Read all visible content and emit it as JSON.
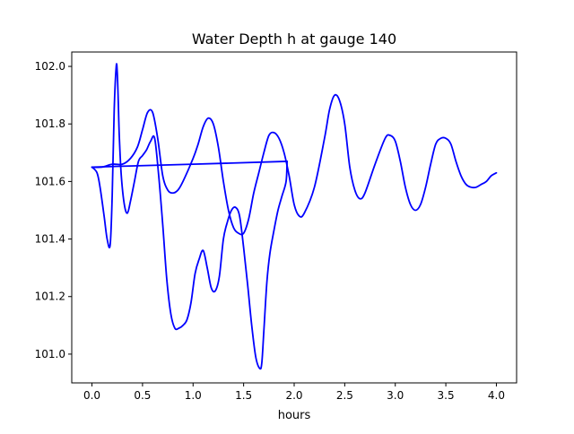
{
  "chart_data": {
    "type": "line",
    "title": "Water Depth h at gauge 140",
    "xlabel": "hours",
    "ylabel": "",
    "xlim": [
      -0.2,
      4.2
    ],
    "ylim": [
      100.9,
      102.05
    ],
    "xticks": [
      0.0,
      0.5,
      1.0,
      1.5,
      2.0,
      2.5,
      3.0,
      3.5,
      4.0
    ],
    "xtick_labels": [
      "0.0",
      "0.5",
      "1.0",
      "1.5",
      "2.0",
      "2.5",
      "3.0",
      "3.5",
      "4.0"
    ],
    "yticks": [
      101.0,
      101.2,
      101.4,
      101.6,
      101.8,
      102.0
    ],
    "ytick_labels": [
      "101.0",
      "101.2",
      "101.4",
      "101.6",
      "101.8",
      "102.0"
    ],
    "grid": false,
    "legend": "none",
    "series": [
      {
        "color": "#0000ff",
        "segments": [
          {
            "x": [
              0.0,
              0.05,
              0.08,
              0.12,
              0.15,
              0.18,
              0.2,
              0.22,
              0.24,
              0.25,
              0.26,
              0.27,
              0.29,
              0.32,
              0.35,
              0.38,
              0.42,
              0.46,
              0.5,
              0.54,
              0.58,
              0.62,
              0.66,
              0.7,
              0.74,
              0.78,
              0.82,
              0.86,
              0.9,
              0.94,
              0.98,
              1.02,
              1.06,
              1.1,
              1.14,
              1.18,
              1.22,
              1.26,
              1.3,
              1.34,
              1.38,
              1.42,
              1.46,
              1.5,
              1.54,
              1.58,
              1.62,
              1.66,
              1.68,
              1.7,
              1.73,
              1.76,
              1.8,
              1.84,
              1.88,
              1.92,
              1.93
            ],
            "y": [
              101.65,
              101.63,
              101.58,
              101.48,
              101.4,
              101.38,
              101.55,
              101.85,
              102.0,
              101.98,
              101.88,
              101.76,
              101.62,
              101.52,
              101.49,
              101.53,
              101.6,
              101.67,
              101.69,
              101.71,
              101.74,
              101.75,
              101.62,
              101.45,
              101.26,
              101.14,
              101.09,
              101.09,
              101.1,
              101.12,
              101.18,
              101.28,
              101.33,
              101.36,
              101.3,
              101.23,
              101.22,
              101.27,
              101.4,
              101.46,
              101.5,
              101.51,
              101.48,
              101.37,
              101.24,
              101.1,
              100.99,
              100.95,
              100.97,
              101.08,
              101.25,
              101.35,
              101.43,
              101.5,
              101.55,
              101.6,
              101.67
            ]
          },
          {
            "x": [
              1.93,
              1.0,
              0.0
            ],
            "y": [
              101.67,
              101.66,
              101.65
            ]
          },
          {
            "x": [
              0.0,
              0.1,
              0.2,
              0.3,
              0.38,
              0.45,
              0.5,
              0.55,
              0.6,
              0.65,
              0.7,
              0.75,
              0.8,
              0.85,
              0.9,
              1.0,
              1.05,
              1.1,
              1.15,
              1.2,
              1.25,
              1.3,
              1.35,
              1.4,
              1.45,
              1.5,
              1.55,
              1.6,
              1.65,
              1.7,
              1.75,
              1.8,
              1.85,
              1.9,
              1.95,
              2.0,
              2.05,
              2.1,
              2.2,
              2.3,
              2.35,
              2.4,
              2.45,
              2.5,
              2.55,
              2.6,
              2.65,
              2.7,
              2.8,
              2.9,
              2.95,
              3.0,
              3.05,
              3.1,
              3.15,
              3.2,
              3.25,
              3.3,
              3.35,
              3.4,
              3.45,
              3.5,
              3.55,
              3.6,
              3.65,
              3.7,
              3.75,
              3.8,
              3.85,
              3.9,
              3.95,
              4.0
            ],
            "y": [
              101.65,
              101.65,
              101.66,
              101.66,
              101.68,
              101.72,
              101.78,
              101.84,
              101.84,
              101.75,
              101.62,
              101.57,
              101.56,
              101.57,
              101.6,
              101.68,
              101.73,
              101.79,
              101.82,
              101.8,
              101.72,
              101.6,
              101.5,
              101.44,
              101.42,
              101.42,
              101.47,
              101.56,
              101.63,
              101.7,
              101.76,
              101.77,
              101.75,
              101.7,
              101.62,
              101.52,
              101.48,
              101.49,
              101.58,
              101.75,
              101.85,
              101.9,
              101.88,
              101.8,
              101.65,
              101.57,
              101.54,
              101.56,
              101.66,
              101.75,
              101.76,
              101.74,
              101.67,
              101.58,
              101.52,
              101.5,
              101.52,
              101.58,
              101.66,
              101.73,
              101.75,
              101.75,
              101.73,
              101.67,
              101.62,
              101.59,
              101.58,
              101.58,
              101.59,
              101.6,
              101.62,
              101.63
            ]
          }
        ]
      }
    ]
  }
}
